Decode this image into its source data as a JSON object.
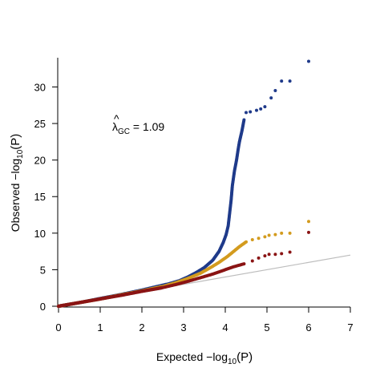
{
  "chart_data": {
    "type": "scatter",
    "xlabel_main": "Expected  −log",
    "xlabel_sub": "10",
    "xlabel_var": "(P)",
    "ylabel_main": "Observed  −log",
    "ylabel_sub": "10",
    "ylabel_var": "(P)",
    "annotation_symbol": "λ",
    "annotation_hat": "^",
    "annotation_sub": "GC",
    "annotation_value": " = 1.09",
    "xlim": [
      0,
      7
    ],
    "ylim": [
      0,
      34
    ],
    "x_ticks": [
      0,
      1,
      2,
      3,
      4,
      5,
      6,
      7
    ],
    "y_ticks": [
      0,
      5,
      10,
      15,
      20,
      25,
      30
    ],
    "reference_line": {
      "color": "#bdbdbd",
      "slope": 1
    },
    "series": [
      {
        "color": "#1f3a8a",
        "points": [
          [
            0,
            0
          ],
          [
            0.3,
            0.3
          ],
          [
            0.6,
            0.6
          ],
          [
            1,
            1.05
          ],
          [
            1.5,
            1.6
          ],
          [
            2,
            2.2
          ],
          [
            2.3,
            2.6
          ],
          [
            2.6,
            3.0
          ],
          [
            2.9,
            3.5
          ],
          [
            3.1,
            4.0
          ],
          [
            3.3,
            4.6
          ],
          [
            3.5,
            5.3
          ],
          [
            3.7,
            6.3
          ],
          [
            3.85,
            7.5
          ],
          [
            3.95,
            8.7
          ],
          [
            4.02,
            9.8
          ],
          [
            4.07,
            11.0
          ],
          [
            4.1,
            12.5
          ],
          [
            4.14,
            14.5
          ],
          [
            4.17,
            16.5
          ],
          [
            4.22,
            18.5
          ],
          [
            4.27,
            20.0
          ],
          [
            4.31,
            21.5
          ],
          [
            4.34,
            22.5
          ],
          [
            4.4,
            24.0
          ],
          [
            4.45,
            25.5
          ],
          [
            4.5,
            26.5
          ],
          [
            4.6,
            26.6
          ],
          [
            4.75,
            26.8
          ],
          [
            4.85,
            27.0
          ],
          [
            4.95,
            27.3
          ],
          [
            5.1,
            28.5
          ],
          [
            5.2,
            29.5
          ],
          [
            5.35,
            30.8
          ],
          [
            5.55,
            30.8
          ],
          [
            6.0,
            33.5
          ]
        ]
      },
      {
        "color": "#d39b1e",
        "points": [
          [
            0,
            0
          ],
          [
            0.5,
            0.5
          ],
          [
            1,
            1.0
          ],
          [
            1.5,
            1.55
          ],
          [
            2,
            2.1
          ],
          [
            2.5,
            2.7
          ],
          [
            2.8,
            3.2
          ],
          [
            3.1,
            3.8
          ],
          [
            3.4,
            4.5
          ],
          [
            3.65,
            5.3
          ],
          [
            3.85,
            6.0
          ],
          [
            4.05,
            6.8
          ],
          [
            4.2,
            7.5
          ],
          [
            4.35,
            8.2
          ],
          [
            4.5,
            8.8
          ],
          [
            4.65,
            9.1
          ],
          [
            4.8,
            9.3
          ],
          [
            4.95,
            9.5
          ],
          [
            5.05,
            9.7
          ],
          [
            5.2,
            9.8
          ],
          [
            5.35,
            10.0
          ],
          [
            5.55,
            10.0
          ],
          [
            6.0,
            11.6
          ]
        ]
      },
      {
        "color": "#8a1414",
        "points": [
          [
            0,
            0
          ],
          [
            0.5,
            0.5
          ],
          [
            1,
            1.0
          ],
          [
            1.5,
            1.5
          ],
          [
            2,
            2.05
          ],
          [
            2.5,
            2.55
          ],
          [
            2.8,
            2.95
          ],
          [
            3.1,
            3.4
          ],
          [
            3.4,
            3.9
          ],
          [
            3.7,
            4.4
          ],
          [
            3.95,
            4.9
          ],
          [
            4.2,
            5.4
          ],
          [
            4.45,
            5.8
          ],
          [
            4.65,
            6.2
          ],
          [
            4.8,
            6.6
          ],
          [
            4.95,
            6.9
          ],
          [
            5.05,
            7.1
          ],
          [
            5.2,
            7.1
          ],
          [
            5.35,
            7.2
          ],
          [
            5.55,
            7.4
          ],
          [
            6.0,
            10.1
          ]
        ]
      }
    ]
  }
}
